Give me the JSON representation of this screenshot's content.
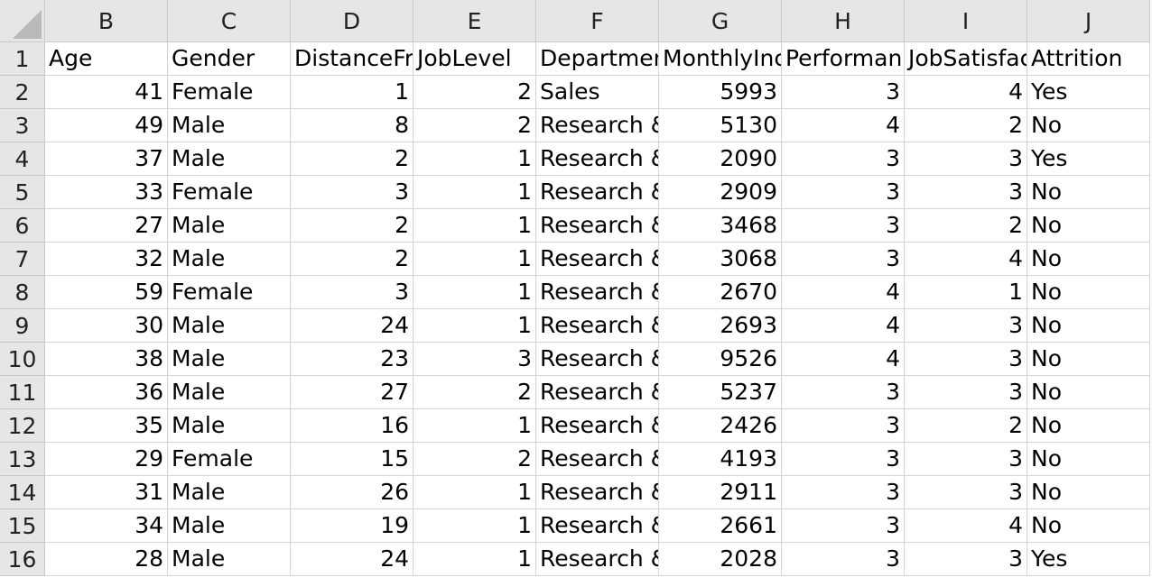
{
  "columns": [
    "B",
    "C",
    "D",
    "E",
    "F",
    "G",
    "H",
    "I",
    "J"
  ],
  "rowNumbers": [
    "1",
    "2",
    "3",
    "4",
    "5",
    "6",
    "7",
    "8",
    "9",
    "10",
    "11",
    "12",
    "13",
    "14",
    "15",
    "16"
  ],
  "header": [
    "Age",
    "Gender",
    "DistanceFr",
    "JobLevel",
    "Departmer",
    "MonthlyInc",
    "Performan",
    "JobSatisfac",
    "Attrition"
  ],
  "rows": [
    [
      "41",
      "Female",
      "1",
      "2",
      "Sales",
      "5993",
      "3",
      "4",
      "Yes"
    ],
    [
      "49",
      "Male",
      "8",
      "2",
      "Research &",
      "5130",
      "4",
      "2",
      "No"
    ],
    [
      "37",
      "Male",
      "2",
      "1",
      "Research &",
      "2090",
      "3",
      "3",
      "Yes"
    ],
    [
      "33",
      "Female",
      "3",
      "1",
      "Research &",
      "2909",
      "3",
      "3",
      "No"
    ],
    [
      "27",
      "Male",
      "2",
      "1",
      "Research &",
      "3468",
      "3",
      "2",
      "No"
    ],
    [
      "32",
      "Male",
      "2",
      "1",
      "Research &",
      "3068",
      "3",
      "4",
      "No"
    ],
    [
      "59",
      "Female",
      "3",
      "1",
      "Research &",
      "2670",
      "4",
      "1",
      "No"
    ],
    [
      "30",
      "Male",
      "24",
      "1",
      "Research &",
      "2693",
      "4",
      "3",
      "No"
    ],
    [
      "38",
      "Male",
      "23",
      "3",
      "Research &",
      "9526",
      "4",
      "3",
      "No"
    ],
    [
      "36",
      "Male",
      "27",
      "2",
      "Research &",
      "5237",
      "3",
      "3",
      "No"
    ],
    [
      "35",
      "Male",
      "16",
      "1",
      "Research &",
      "2426",
      "3",
      "2",
      "No"
    ],
    [
      "29",
      "Female",
      "15",
      "2",
      "Research &",
      "4193",
      "3",
      "3",
      "No"
    ],
    [
      "31",
      "Male",
      "26",
      "1",
      "Research &",
      "2911",
      "3",
      "3",
      "No"
    ],
    [
      "34",
      "Male",
      "19",
      "1",
      "Research &",
      "2661",
      "3",
      "4",
      "No"
    ],
    [
      "28",
      "Male",
      "24",
      "1",
      "Research &",
      "2028",
      "3",
      "3",
      "Yes"
    ]
  ],
  "alignment": [
    "num",
    "txt",
    "num",
    "num",
    "txt",
    "num",
    "num",
    "num",
    "txt"
  ]
}
